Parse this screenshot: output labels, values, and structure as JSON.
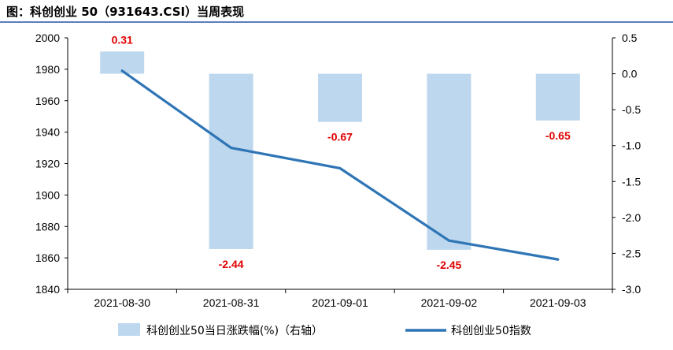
{
  "title": "图：科创创业 50（931643.CSI）当周表现",
  "chart_data": {
    "type": "bar+line",
    "categories": [
      "2021-08-30",
      "2021-08-31",
      "2021-09-01",
      "2021-09-02",
      "2021-09-03"
    ],
    "bar_series": {
      "name": "科创创业50当日涨跌幅(%)（右轴）",
      "values": [
        0.31,
        -2.44,
        -0.67,
        -2.45,
        -0.65
      ],
      "labels": [
        "0.31",
        "-2.44",
        "-0.67",
        "-2.45",
        "-0.65"
      ],
      "axis": "right",
      "color": "#bdd7ee"
    },
    "line_series": {
      "name": "科创创业50指数",
      "values": [
        1979,
        1930,
        1917,
        1871,
        1859
      ],
      "axis": "left",
      "color": "#2e75b6"
    },
    "left_axis": {
      "min": 1840,
      "max": 2000,
      "step": 20,
      "tick_labels": [
        "2000",
        "1980",
        "1960",
        "1940",
        "1920",
        "1900",
        "1880",
        "1860",
        "1840"
      ]
    },
    "right_axis": {
      "min": -3.0,
      "max": 0.5,
      "step": 0.5,
      "tick_labels": [
        "0.5",
        "0.0",
        "-0.5",
        "-1.0",
        "-1.5",
        "-2.0",
        "-2.5",
        "-3.0"
      ]
    },
    "label_color": "#e00000",
    "legend_placement": "bottom",
    "grid": false
  }
}
